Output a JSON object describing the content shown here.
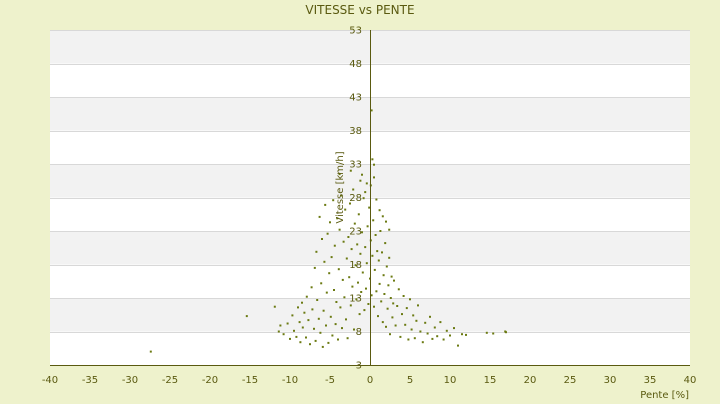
{
  "chart_data": {
    "type": "scatter",
    "title": "VITESSE vs PENTE",
    "xlabel": "Pente [%]",
    "ylabel": "Vitesse [km/h]",
    "xlim": [
      -40,
      40
    ],
    "ylim": [
      3,
      53
    ],
    "xticks": [
      -40,
      -35,
      -30,
      -25,
      -20,
      -15,
      -10,
      -5,
      0,
      5,
      10,
      15,
      20,
      25,
      30,
      35,
      40
    ],
    "yticks": [
      3,
      8,
      13,
      18,
      23,
      28,
      33,
      38,
      43,
      48,
      53
    ],
    "grid": true,
    "legend": "none",
    "colors": {
      "background": "#eef2cc",
      "plot_background": "#ffffff",
      "band_alternate": "#f2f2f2",
      "gridline": "#d8d8d8",
      "axis": "#5a5a10",
      "marker": "#6b7a12",
      "text": "#5a5a10"
    },
    "series": [
      {
        "values": [
          [
            -27.4,
            5.0
          ],
          [
            -15.4,
            10.3
          ],
          [
            -11.9,
            11.7
          ],
          [
            -11.4,
            8.0
          ],
          [
            -11.2,
            8.9
          ],
          [
            -10.8,
            7.6
          ],
          [
            -10.3,
            9.2
          ],
          [
            -10.0,
            6.9
          ],
          [
            -9.7,
            10.4
          ],
          [
            -9.5,
            8.1
          ],
          [
            -9.2,
            7.2
          ],
          [
            -9.0,
            11.6
          ],
          [
            -8.8,
            9.4
          ],
          [
            -8.7,
            6.4
          ],
          [
            -8.5,
            12.3
          ],
          [
            -8.4,
            8.6
          ],
          [
            -8.2,
            10.8
          ],
          [
            -8.0,
            7.1
          ],
          [
            -7.9,
            13.2
          ],
          [
            -7.7,
            9.7
          ],
          [
            -7.5,
            6.1
          ],
          [
            -7.3,
            14.6
          ],
          [
            -7.2,
            11.3
          ],
          [
            -7.0,
            8.4
          ],
          [
            -6.9,
            17.5
          ],
          [
            -6.8,
            6.6
          ],
          [
            -6.7,
            19.9
          ],
          [
            -6.6,
            12.7
          ],
          [
            -6.4,
            9.9
          ],
          [
            -6.3,
            25.1
          ],
          [
            -6.2,
            7.8
          ],
          [
            -6.1,
            15.2
          ],
          [
            -6.0,
            21.8
          ],
          [
            -5.9,
            5.7
          ],
          [
            -5.8,
            11.1
          ],
          [
            -5.7,
            18.4
          ],
          [
            -5.6,
            26.9
          ],
          [
            -5.5,
            8.9
          ],
          [
            -5.4,
            13.8
          ],
          [
            -5.3,
            22.6
          ],
          [
            -5.2,
            6.3
          ],
          [
            -5.1,
            16.7
          ],
          [
            -5.0,
            24.3
          ],
          [
            -4.9,
            10.2
          ],
          [
            -4.8,
            19.1
          ],
          [
            -4.7,
            7.4
          ],
          [
            -4.6,
            27.6
          ],
          [
            -4.5,
            14.2
          ],
          [
            -4.4,
            20.8
          ],
          [
            -4.3,
            9.1
          ],
          [
            -4.2,
            12.4
          ],
          [
            -4.1,
            24.9
          ],
          [
            -4.0,
            6.8
          ],
          [
            -3.9,
            17.3
          ],
          [
            -3.8,
            23.2
          ],
          [
            -3.7,
            11.6
          ],
          [
            -3.6,
            28.3
          ],
          [
            -3.5,
            8.5
          ],
          [
            -3.4,
            15.7
          ],
          [
            -3.3,
            21.4
          ],
          [
            -3.2,
            13.1
          ],
          [
            -3.1,
            26.2
          ],
          [
            -3.0,
            9.8
          ],
          [
            -2.9,
            18.9
          ],
          [
            -2.8,
            7.0
          ],
          [
            -2.7,
            22.1
          ],
          [
            -2.6,
            16.1
          ],
          [
            -2.5,
            27.1
          ],
          [
            -2.4,
            11.9
          ],
          [
            -2.3,
            20.3
          ],
          [
            -2.2,
            14.7
          ],
          [
            -2.1,
            29.2
          ],
          [
            -2.0,
            8.3
          ],
          [
            -1.9,
            24.1
          ],
          [
            -1.8,
            17.9
          ],
          [
            -1.7,
            12.8
          ],
          [
            -1.6,
            21.0
          ],
          [
            -1.5,
            15.3
          ],
          [
            -1.4,
            25.5
          ],
          [
            -1.3,
            10.6
          ],
          [
            -1.2,
            19.6
          ],
          [
            -1.1,
            13.9
          ],
          [
            -1.0,
            22.8
          ],
          [
            -0.9,
            16.8
          ],
          [
            -0.8,
            27.9
          ],
          [
            -0.7,
            11.2
          ],
          [
            -0.6,
            20.6
          ],
          [
            -0.5,
            14.4
          ],
          [
            -0.4,
            18.2
          ],
          [
            -0.3,
            23.7
          ],
          [
            -0.2,
            12.1
          ],
          [
            -0.1,
            26.5
          ],
          [
            0.0,
            15.9
          ],
          [
            0.1,
            21.6
          ],
          [
            0.2,
            13.4
          ],
          [
            0.3,
            19.3
          ],
          [
            0.4,
            24.6
          ],
          [
            0.5,
            11.7
          ],
          [
            0.6,
            17.2
          ],
          [
            0.7,
            22.4
          ],
          [
            0.8,
            14.0
          ],
          [
            0.9,
            20.0
          ],
          [
            1.0,
            10.3
          ],
          [
            1.1,
            18.6
          ],
          [
            1.2,
            15.1
          ],
          [
            1.3,
            23.0
          ],
          [
            1.4,
            12.5
          ],
          [
            1.5,
            19.8
          ],
          [
            1.6,
            9.4
          ],
          [
            1.7,
            16.4
          ],
          [
            1.8,
            13.6
          ],
          [
            1.9,
            21.2
          ],
          [
            2.0,
            8.7
          ],
          [
            2.1,
            17.7
          ],
          [
            2.2,
            11.4
          ],
          [
            2.3,
            14.9
          ],
          [
            2.4,
            19.0
          ],
          [
            2.5,
            7.6
          ],
          [
            2.6,
            13.0
          ],
          [
            2.7,
            16.2
          ],
          [
            2.8,
            10.1
          ],
          [
            2.9,
            12.2
          ],
          [
            3.0,
            15.6
          ],
          [
            3.2,
            8.9
          ],
          [
            3.4,
            11.8
          ],
          [
            3.6,
            14.3
          ],
          [
            3.8,
            7.2
          ],
          [
            4.0,
            10.6
          ],
          [
            4.2,
            13.3
          ],
          [
            4.4,
            9.0
          ],
          [
            4.6,
            11.5
          ],
          [
            4.8,
            6.8
          ],
          [
            5.0,
            12.8
          ],
          [
            5.2,
            8.3
          ],
          [
            5.4,
            10.4
          ],
          [
            5.6,
            7.0
          ],
          [
            5.8,
            9.6
          ],
          [
            6.0,
            11.9
          ],
          [
            6.3,
            8.0
          ],
          [
            6.6,
            6.4
          ],
          [
            6.9,
            9.3
          ],
          [
            7.2,
            7.7
          ],
          [
            7.5,
            10.2
          ],
          [
            7.8,
            6.9
          ],
          [
            8.1,
            8.6
          ],
          [
            8.4,
            7.3
          ],
          [
            8.8,
            9.4
          ],
          [
            9.2,
            6.8
          ],
          [
            9.6,
            8.1
          ],
          [
            10.0,
            7.4
          ],
          [
            10.5,
            8.5
          ],
          [
            11.0,
            5.9
          ],
          [
            11.5,
            7.6
          ],
          [
            12.0,
            7.5
          ],
          [
            14.6,
            7.8
          ],
          [
            15.4,
            7.7
          ],
          [
            16.9,
            8.0
          ],
          [
            17.0,
            7.9
          ],
          [
            0.3,
            33.7
          ],
          [
            0.5,
            32.9
          ],
          [
            -0.4,
            30.1
          ],
          [
            -1.0,
            31.4
          ],
          [
            0.2,
            41.0
          ],
          [
            0.1,
            29.8
          ],
          [
            -3.8,
            31.5
          ],
          [
            -2.4,
            32.0
          ],
          [
            -1.2,
            30.5
          ],
          [
            0.5,
            31.0
          ],
          [
            -0.6,
            28.8
          ],
          [
            0.8,
            27.7
          ],
          [
            1.2,
            26.1
          ],
          [
            1.6,
            25.2
          ],
          [
            2.0,
            24.4
          ],
          [
            2.4,
            23.2
          ]
        ]
      }
    ]
  }
}
